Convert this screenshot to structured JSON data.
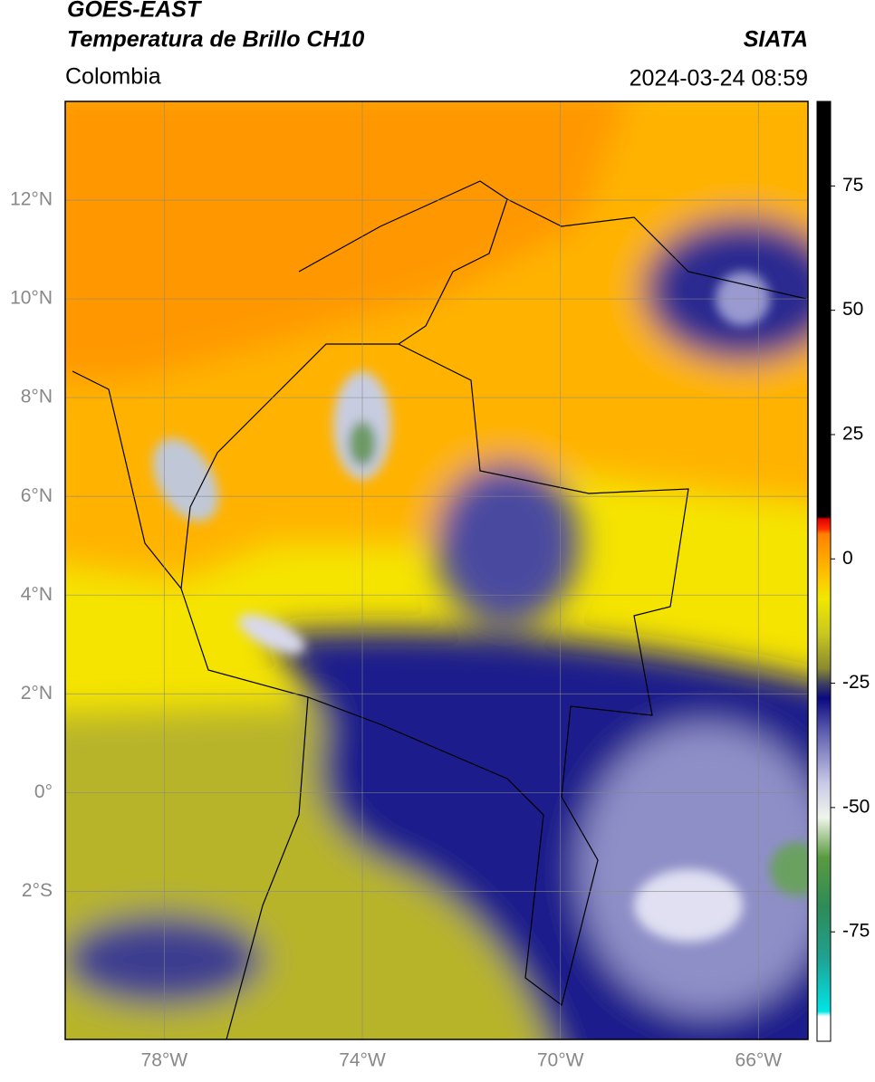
{
  "title": "GOES-EAST",
  "subtitle": "Temperatura de Brillo CH10",
  "source": "SIATA",
  "region": "Colombia",
  "timestamp": "2024-03-24 08:59",
  "map": {
    "xlim": [
      -80,
      -65
    ],
    "ylim": [
      -5,
      14
    ],
    "xticks": [
      {
        "value": -78,
        "label": "78°W"
      },
      {
        "value": -74,
        "label": "74°W"
      },
      {
        "value": -70,
        "label": "70°W"
      },
      {
        "value": -66,
        "label": "66°W"
      }
    ],
    "yticks": [
      {
        "value": 12,
        "label": "12°N"
      },
      {
        "value": 10,
        "label": "10°N"
      },
      {
        "value": 8,
        "label": "8°N"
      },
      {
        "value": 6,
        "label": "6°N"
      },
      {
        "value": 4,
        "label": "4°N"
      },
      {
        "value": 2,
        "label": "2°N"
      },
      {
        "value": 0,
        "label": "0°"
      },
      {
        "value": -2,
        "label": "2°S"
      }
    ],
    "grid": true
  },
  "colorbar": {
    "clim": [
      -97,
      92
    ],
    "ticks": [
      75,
      50,
      25,
      0,
      -25,
      -50,
      -75
    ],
    "colorscale": [
      [
        -97,
        "#ffffff"
      ],
      [
        -92,
        "#ffffff"
      ],
      [
        -91,
        "#00e5e5"
      ],
      [
        -80,
        "#20a090"
      ],
      [
        -70,
        "#2e8b57"
      ],
      [
        -60,
        "#5a9a40"
      ],
      [
        -52,
        "#f0f5ea"
      ],
      [
        -45,
        "#c8c8e8"
      ],
      [
        -35,
        "#6060b0"
      ],
      [
        -28,
        "#0a0a80"
      ],
      [
        -25,
        "#404060"
      ],
      [
        -22,
        "#8a8a30"
      ],
      [
        -15,
        "#c8c820"
      ],
      [
        -8,
        "#f0e800"
      ],
      [
        -3,
        "#ffc000"
      ],
      [
        5,
        "#ff8000"
      ],
      [
        6,
        "#ff3000"
      ],
      [
        8,
        "#e00000"
      ],
      [
        8.5,
        "#000000"
      ],
      [
        92,
        "#000000"
      ]
    ]
  }
}
